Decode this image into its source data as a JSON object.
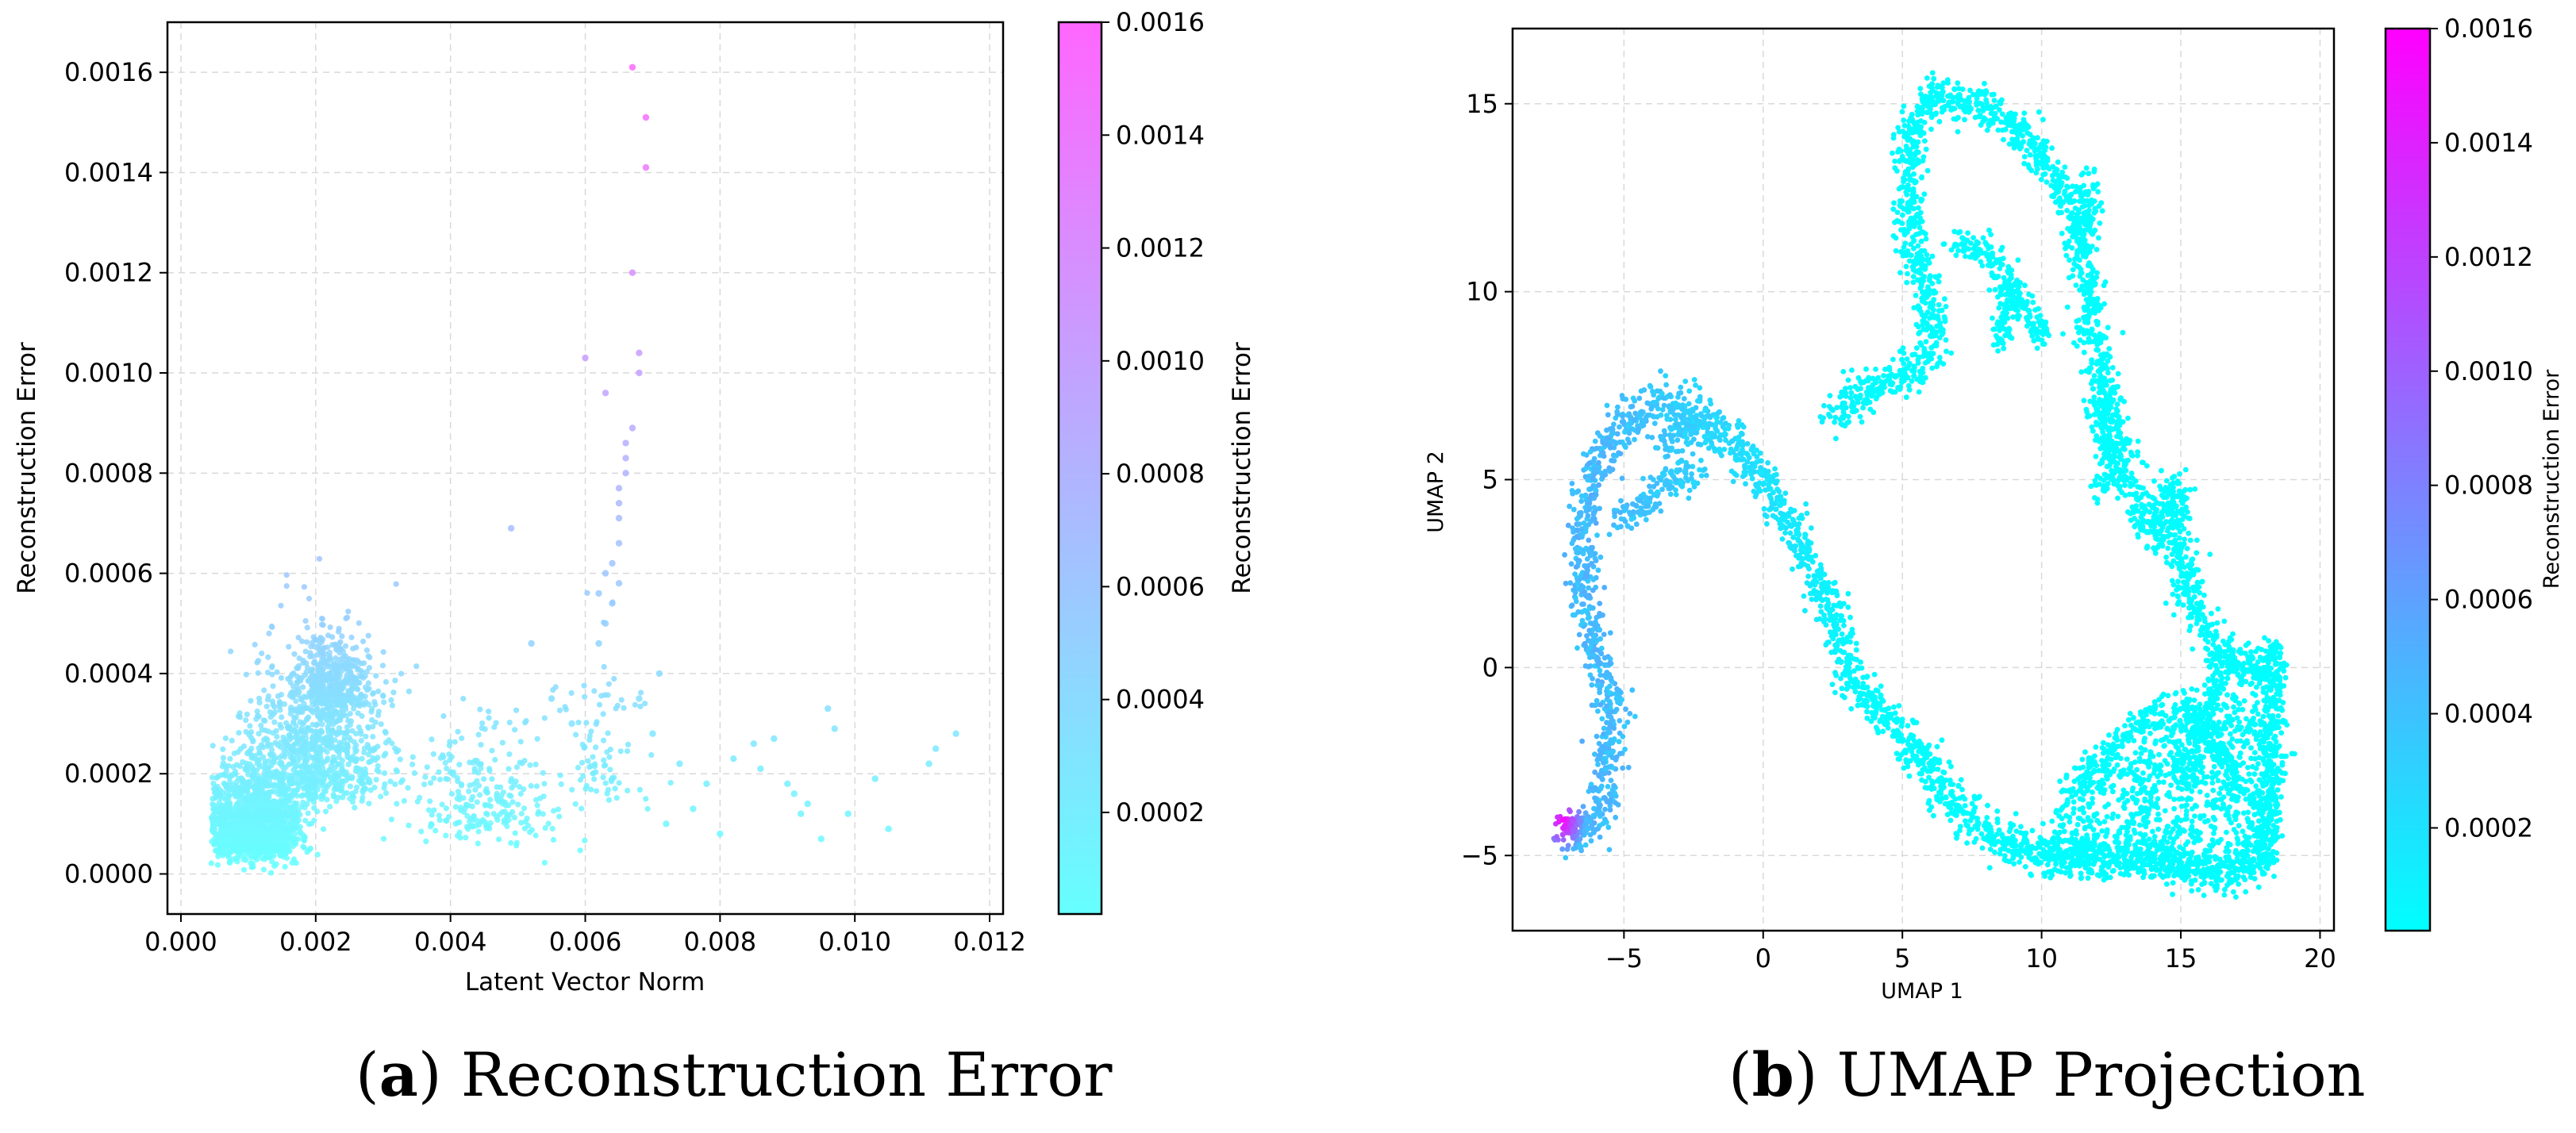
{
  "captions": {
    "a": {
      "letter": "a",
      "text": "Reconstruction Error"
    },
    "b": {
      "letter": "b",
      "text": "UMAP Projection"
    }
  },
  "chart_data": [
    {
      "type": "scatter",
      "id": "a",
      "xlabel": "Latent Vector Norm",
      "ylabel": "Reconstruction Error",
      "xlim": [
        -0.0002,
        0.0122
      ],
      "ylim": [
        -8e-05,
        0.0017
      ],
      "xticks": [
        "0.000",
        "0.002",
        "0.004",
        "0.006",
        "0.008",
        "0.010",
        "0.012"
      ],
      "xtick_values": [
        0,
        0.002,
        0.004,
        0.006,
        0.008,
        0.01,
        0.012
      ],
      "yticks": [
        "0.0000",
        "0.0002",
        "0.0004",
        "0.0006",
        "0.0008",
        "0.0010",
        "0.0012",
        "0.0014",
        "0.0016"
      ],
      "ytick_values": [
        0,
        0.0002,
        0.0004,
        0.0006,
        0.0008,
        0.001,
        0.0012,
        0.0014,
        0.0016
      ],
      "grid": true,
      "colormap": "cool",
      "colormap_colors": [
        "#66ffff",
        "#ff66ff"
      ],
      "colorbar": {
        "label": "Reconstruction Error",
        "range": [
          2e-05,
          0.0016
        ],
        "ticks": [
          "0.0002",
          "0.0004",
          "0.0006",
          "0.0008",
          "0.0010",
          "0.0012",
          "0.0014",
          "0.0016"
        ],
        "tick_values": [
          0.0002,
          0.0004,
          0.0006,
          0.0008,
          0.001,
          0.0012,
          0.0014,
          0.0016
        ]
      },
      "points": [
        [
          0.0067,
          0.00161
        ],
        [
          0.0069,
          0.00151
        ],
        [
          0.0069,
          0.00141
        ],
        [
          0.0067,
          0.0012
        ],
        [
          0.006,
          0.00103
        ],
        [
          0.0068,
          0.00104
        ],
        [
          0.0068,
          0.001
        ],
        [
          0.0063,
          0.00096
        ],
        [
          0.0067,
          0.00089
        ],
        [
          0.0066,
          0.00086
        ],
        [
          0.0066,
          0.00083
        ],
        [
          0.0066,
          0.0008
        ],
        [
          0.0049,
          0.00069
        ],
        [
          0.0065,
          0.00077
        ],
        [
          0.0065,
          0.00074
        ],
        [
          0.0065,
          0.00071
        ],
        [
          0.0065,
          0.00066
        ],
        [
          0.0064,
          0.00062
        ],
        [
          0.0063,
          0.0006
        ],
        [
          0.0065,
          0.00058
        ],
        [
          0.0062,
          0.00056
        ],
        [
          0.0064,
          0.00054
        ],
        [
          0.0063,
          0.0005
        ],
        [
          0.0062,
          0.00046
        ],
        [
          0.0071,
          0.0004
        ],
        [
          0.0074,
          0.00022
        ],
        [
          0.0078,
          0.00018
        ],
        [
          0.0082,
          0.00023
        ],
        [
          0.0085,
          0.00026
        ],
        [
          0.0088,
          0.00027
        ],
        [
          0.0091,
          0.00016
        ],
        [
          0.0092,
          0.00012
        ],
        [
          0.0095,
          7e-05
        ],
        [
          0.0096,
          0.00033
        ],
        [
          0.0097,
          0.00029
        ],
        [
          0.0099,
          0.00012
        ],
        [
          0.0103,
          0.00019
        ],
        [
          0.0111,
          0.00022
        ],
        [
          0.0112,
          0.00025
        ],
        [
          0.0115,
          0.00028
        ],
        [
          0.0072,
          0.0001
        ],
        [
          0.0076,
          0.00013
        ],
        [
          0.008,
          8e-05
        ],
        [
          0.0086,
          0.00021
        ],
        [
          0.009,
          0.00018
        ],
        [
          0.0093,
          0.00014
        ],
        [
          0.0105,
          9e-05
        ],
        [
          0.007,
          0.00028
        ],
        [
          0.0068,
          0.00035
        ],
        [
          0.0052,
          0.00046
        ],
        [
          0.0055,
          0.00035
        ],
        [
          0.0058,
          0.0003
        ]
      ],
      "clusters": [
        {
          "center": [
            0.0011,
            7e-05
          ],
          "spread": [
            0.00065,
            7e-05
          ],
          "count": 1400
        },
        {
          "center": [
            0.002,
            0.0002
          ],
          "spread": [
            0.0009,
            0.00012
          ],
          "count": 900
        },
        {
          "center": [
            0.0023,
            0.00036
          ],
          "spread": [
            0.0005,
            6e-05
          ],
          "count": 350
        },
        {
          "center": [
            0.0045,
            0.00012
          ],
          "spread": [
            0.0011,
            9e-05
          ],
          "count": 260
        },
        {
          "center": [
            0.0062,
            0.0002
          ],
          "spread": [
            0.0006,
            0.00012
          ],
          "count": 90
        }
      ]
    },
    {
      "type": "scatter",
      "id": "b",
      "xlabel": "UMAP 1",
      "ylabel": "UMAP 2",
      "xlim": [
        -9.0,
        20.5
      ],
      "ylim": [
        -7.0,
        17.0
      ],
      "xticks": [
        "−5",
        "0",
        "5",
        "10",
        "15",
        "20"
      ],
      "xtick_values": [
        -5,
        0,
        5,
        10,
        15,
        20
      ],
      "yticks": [
        "−5",
        "0",
        "5",
        "10",
        "15"
      ],
      "ytick_values": [
        -5,
        0,
        5,
        10,
        15
      ],
      "grid": true,
      "colormap": "cool",
      "colormap_colors": [
        "#00ffff",
        "#ff00ff"
      ],
      "colorbar": {
        "label": "Reconstruction Error",
        "range": [
          2e-05,
          0.0016
        ],
        "ticks": [
          "0.0002",
          "0.0004",
          "0.0006",
          "0.0008",
          "0.0010",
          "0.0012",
          "0.0014",
          "0.0016"
        ],
        "tick_values": [
          0.0002,
          0.0004,
          0.0006,
          0.0008,
          0.001,
          0.0012,
          0.0014,
          0.0016
        ]
      },
      "path": [
        [
          -7.3,
          -4.2
        ],
        [
          -6.8,
          -4.5
        ],
        [
          -5.9,
          -4.0
        ],
        [
          -5.6,
          -2.5
        ],
        [
          -5.4,
          -1.0
        ],
        [
          -6.0,
          0.3
        ],
        [
          -6.4,
          2.0
        ],
        [
          -6.5,
          4.0
        ],
        [
          -5.8,
          5.8
        ],
        [
          -4.5,
          6.8
        ],
        [
          -3.0,
          7.0
        ],
        [
          -1.5,
          6.3
        ],
        [
          0.0,
          5.0
        ],
        [
          1.3,
          3.4
        ],
        [
          2.4,
          1.6
        ],
        [
          3.2,
          -0.3
        ],
        [
          4.5,
          -1.4
        ],
        [
          5.7,
          -2.3
        ],
        [
          6.6,
          -3.4
        ],
        [
          7.7,
          -4.3
        ],
        [
          9.2,
          -4.8
        ],
        [
          11.0,
          -5.0
        ],
        [
          13.2,
          -5.0
        ],
        [
          14.8,
          -5.2
        ],
        [
          16.3,
          -5.6
        ],
        [
          17.6,
          -5.2
        ],
        [
          18.2,
          -3.8
        ],
        [
          18.2,
          -2.0
        ],
        [
          18.3,
          0.4
        ],
        [
          17.8,
          -0.3
        ],
        [
          16.4,
          0.5
        ],
        [
          15.5,
          1.5
        ],
        [
          15.0,
          3.0
        ],
        [
          14.7,
          4.8
        ],
        [
          14.0,
          3.5
        ],
        [
          13.2,
          4.8
        ],
        [
          12.4,
          6.8
        ],
        [
          11.9,
          9.0
        ],
        [
          11.5,
          10.6
        ],
        [
          11.1,
          12.2
        ],
        [
          10.6,
          13.0
        ],
        [
          9.6,
          14.0
        ],
        [
          8.2,
          14.8
        ],
        [
          7.0,
          15.0
        ],
        [
          6.0,
          15.2
        ],
        [
          5.2,
          14.2
        ],
        [
          5.3,
          12.6
        ],
        [
          5.4,
          11.0
        ],
        [
          6.0,
          9.6
        ],
        [
          6.2,
          8.4
        ],
        [
          5.0,
          7.8
        ],
        [
          3.8,
          7.3
        ],
        [
          2.4,
          6.8
        ]
      ],
      "branches": [
        [
          [
            -5.2,
            3.8
          ],
          [
            -4.2,
            4.4
          ],
          [
            -3.2,
            5.0
          ],
          [
            -2.2,
            5.0
          ]
        ],
        [
          [
            -3.8,
            6.0
          ],
          [
            -2.8,
            6.2
          ],
          [
            -2.0,
            6.2
          ]
        ],
        [
          [
            6.8,
            11.3
          ],
          [
            8.0,
            11.0
          ],
          [
            9.2,
            9.8
          ],
          [
            10.2,
            8.8
          ]
        ],
        [
          [
            8.5,
            8.6
          ],
          [
            8.7,
            9.4
          ],
          [
            9.0,
            10.2
          ]
        ],
        [
          [
            11.8,
            13.0
          ],
          [
            11.5,
            11.0
          ]
        ],
        [
          [
            12.0,
            7.2
          ],
          [
            12.6,
            5.2
          ],
          [
            12.0,
            4.8
          ]
        ],
        [
          [
            11.0,
            -3.2
          ],
          [
            12.4,
            -2.2
          ],
          [
            13.6,
            -1.5
          ],
          [
            15.2,
            -1.0
          ],
          [
            16.6,
            -2.4
          ],
          [
            17.4,
            -3.6
          ]
        ],
        [
          [
            15.0,
            -3.0
          ],
          [
            16.0,
            -1.2
          ],
          [
            16.8,
            0.4
          ]
        ]
      ],
      "field": {
        "x": [
          10.0,
          18.5
        ],
        "y": [
          -5.6,
          -0.8
        ],
        "count": 1800
      },
      "error_scale": {
        "low": 3e-05,
        "high": 0.00055
      },
      "error_hotspot": {
        "center": [
          -7.2,
          -4.1
        ],
        "radius": 0.8,
        "value": 0.0016
      }
    }
  ]
}
